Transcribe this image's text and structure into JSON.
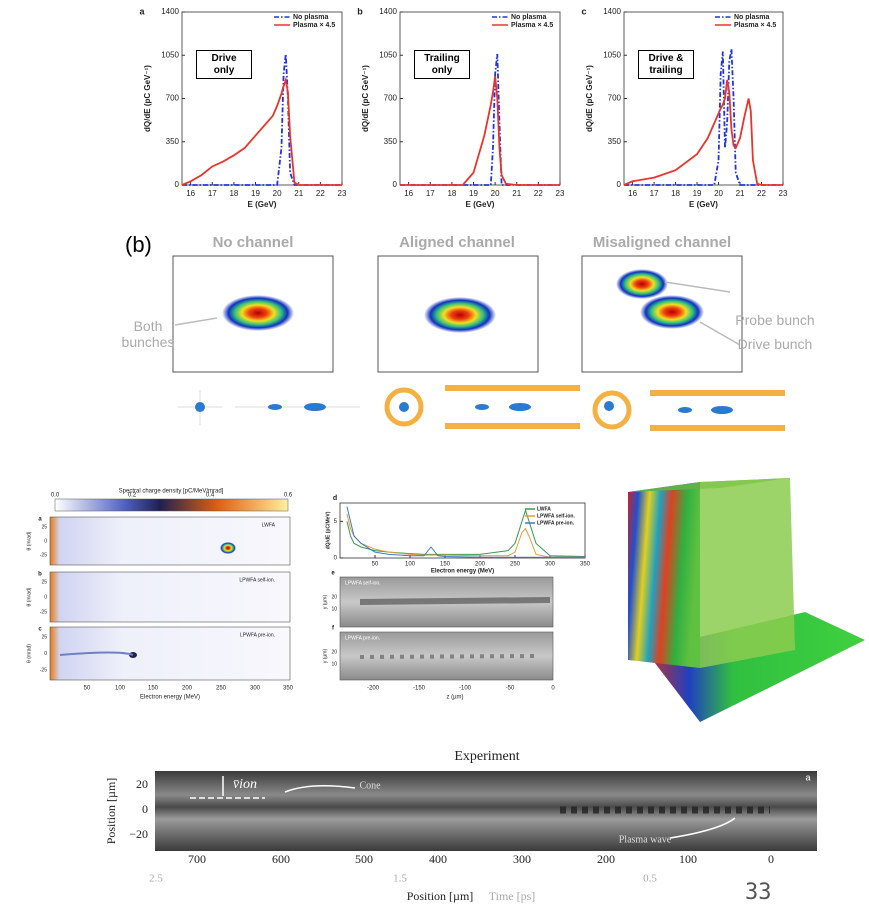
{
  "chart_data": [
    {
      "type": "line",
      "panel": "a",
      "annotation": "Drive only",
      "y_label": "dQ/dE (pC GeV⁻¹)",
      "x_label": "E (GeV)",
      "x": [
        15.6,
        16,
        16.5,
        17,
        17.5,
        18,
        18.5,
        19,
        19.5,
        19.8,
        20,
        20.2,
        20.3,
        20.4,
        20.5,
        20.6,
        20.8,
        21,
        21.5,
        22,
        23
      ],
      "series": [
        {
          "name": "No plasma",
          "color": "#2233dd",
          "line_style": "dashdot",
          "values": [
            0,
            0,
            0,
            0,
            0,
            0,
            0,
            0,
            0,
            0,
            0,
            300,
            900,
            1060,
            700,
            100,
            0,
            0,
            0,
            0,
            0
          ]
        },
        {
          "name": "Plasma × 4.5",
          "color": "#e8352b",
          "line_style": "solid",
          "values": [
            0,
            30,
            80,
            150,
            190,
            240,
            300,
            400,
            500,
            560,
            640,
            740,
            800,
            850,
            750,
            400,
            20,
            0,
            0,
            0,
            0
          ]
        }
      ],
      "xlim": [
        15.6,
        23
      ],
      "xticks": [
        16,
        17,
        18,
        19,
        20,
        21,
        22,
        23
      ],
      "ylim": [
        0,
        1400
      ],
      "yticks": [
        0,
        350,
        700,
        1050,
        1400
      ],
      "legend": "upper right"
    },
    {
      "type": "line",
      "panel": "b",
      "annotation": "Trailing only",
      "y_label": "dQ/dE (pC GeV⁻¹)",
      "x_label": "E (GeV)",
      "x": [
        15.6,
        16,
        17,
        18,
        18.5,
        19,
        19.5,
        19.8,
        19.9,
        20,
        20.1,
        20.2,
        20.3,
        20.5,
        21,
        22,
        23
      ],
      "series": [
        {
          "name": "No plasma",
          "color": "#2233dd",
          "line_style": "dashdot",
          "values": [
            0,
            0,
            0,
            0,
            0,
            0,
            0,
            0,
            300,
            900,
            1060,
            500,
            0,
            0,
            0,
            0,
            0
          ]
        },
        {
          "name": "Plasma × 4.5",
          "color": "#e8352b",
          "line_style": "solid",
          "values": [
            0,
            0,
            0,
            0,
            0,
            100,
            400,
            650,
            750,
            880,
            700,
            300,
            80,
            10,
            0,
            0,
            0
          ]
        }
      ],
      "xlim": [
        15.6,
        23
      ],
      "xticks": [
        16,
        17,
        18,
        19,
        20,
        21,
        22,
        23
      ],
      "ylim": [
        0,
        1400
      ],
      "yticks": [
        0,
        350,
        700,
        1050,
        1400
      ],
      "legend": "upper right"
    },
    {
      "type": "line",
      "panel": "c",
      "annotation": "Drive & trailing",
      "y_label": "dQ/dE (pC GeV⁻¹)",
      "x_label": "E (GeV)",
      "x": [
        15.6,
        16,
        17,
        18,
        19,
        19.5,
        19.8,
        20,
        20.1,
        20.2,
        20.3,
        20.4,
        20.5,
        20.6,
        20.7,
        20.8,
        21,
        21.2,
        21.4,
        21.5,
        21.6,
        21.8,
        22,
        23
      ],
      "series": [
        {
          "name": "No plasma",
          "color": "#2233dd",
          "line_style": "dashdot",
          "values": [
            0,
            0,
            0,
            0,
            0,
            0,
            0,
            200,
            900,
            1080,
            300,
            500,
            1000,
            1100,
            700,
            100,
            0,
            0,
            0,
            0,
            0,
            0,
            0,
            0
          ]
        },
        {
          "name": "Plasma × 4.5",
          "color": "#e8352b",
          "line_style": "solid",
          "values": [
            0,
            30,
            60,
            120,
            250,
            380,
            500,
            580,
            620,
            650,
            700,
            850,
            750,
            450,
            320,
            300,
            380,
            550,
            700,
            600,
            200,
            10,
            0,
            0
          ]
        }
      ],
      "xlim": [
        15.6,
        23
      ],
      "xticks": [
        16,
        17,
        18,
        19,
        20,
        21,
        22,
        23
      ],
      "ylim": [
        0,
        1400
      ],
      "yticks": [
        0,
        350,
        700,
        1050,
        1400
      ],
      "legend": "upper right"
    },
    {
      "type": "line",
      "panel": "d",
      "y_label": "dQ/dE (pC/MeV)",
      "x_label": "Electron energy (MeV)",
      "x": [
        10,
        15,
        20,
        30,
        50,
        70,
        100,
        120,
        130,
        140,
        150,
        200,
        240,
        250,
        260,
        265,
        270,
        280,
        300,
        350
      ],
      "series": [
        {
          "name": "LWFA",
          "color": "#3a9a4a",
          "line_style": "solid",
          "values": [
            5,
            3,
            2,
            1.5,
            1,
            0.8,
            0.6,
            0.5,
            0.5,
            0.5,
            0.5,
            0.5,
            1,
            2,
            5,
            6.5,
            5,
            2,
            0.3,
            0.2
          ]
        },
        {
          "name": "LPWFA self-ion.",
          "color": "#e89a3a",
          "line_style": "solid",
          "values": [
            6,
            4,
            3,
            2,
            1.2,
            0.8,
            0.5,
            0.4,
            0.4,
            0.4,
            0.4,
            0.3,
            0.3,
            0.8,
            3.5,
            4,
            3,
            0.5,
            0.1,
            0.1
          ]
        },
        {
          "name": "LPWFA pre-ion.",
          "color": "#3a7ac8",
          "line_style": "solid",
          "values": [
            7,
            5,
            3,
            2,
            0.8,
            0.5,
            0.3,
            0.3,
            1.5,
            0.3,
            0.2,
            0.1,
            0.1,
            0.1,
            0.1,
            0.1,
            0.1,
            0.1,
            0.1,
            0.1
          ]
        }
      ],
      "xlim": [
        0,
        350
      ],
      "xticks": [
        50,
        100,
        150,
        200,
        250,
        300,
        350
      ],
      "ylim": [
        0,
        7.5
      ],
      "yticks": [
        0,
        5
      ],
      "legend": "upper right"
    }
  ],
  "panel_b": {
    "label": "(b)",
    "columns": [
      "No channel",
      "Aligned channel",
      "Misaligned channel"
    ],
    "annotations": [
      "Both bunches",
      "Probe bunch",
      "Drive bunch"
    ]
  },
  "spectra": {
    "colorbar_title": "Spectral charge density [pC/MeV/mrad]",
    "colorbar_ticks": [
      "0.0",
      "0.2",
      "0.4",
      "0.6"
    ],
    "panels": [
      {
        "label": "a",
        "name": "LWFA"
      },
      {
        "label": "b",
        "name": "LPWFA self-ion."
      },
      {
        "label": "c",
        "name": "LPWFA pre-ion."
      }
    ],
    "y_label": "θ (mrad)",
    "y_ticks": [
      "25",
      "0",
      "-25"
    ],
    "x_ticks": [
      "50",
      "100",
      "150",
      "200",
      "250",
      "300",
      "350"
    ],
    "x_label": "Electron energy (MeV)"
  },
  "shadowgraphs": {
    "panels": [
      {
        "label": "e",
        "name": "LPWFA self-ion."
      },
      {
        "label": "f",
        "name": "LPWFA pre-ion."
      }
    ],
    "y_label": "y (µm)",
    "y_ticks": [
      "20",
      "10"
    ],
    "x_ticks": [
      "-200",
      "-150",
      "-100",
      "-50",
      "0"
    ],
    "x_label": "z (µm)"
  },
  "experiment": {
    "title": "Experiment",
    "panel_label": "a",
    "y_label": "Position [µm]",
    "y_ticks": [
      "20",
      "0",
      "−20"
    ],
    "x_ticks": [
      "700",
      "600",
      "500",
      "400",
      "300",
      "200",
      "100",
      "0"
    ],
    "time_ticks": [
      "2.5",
      "1.5",
      "0.5"
    ],
    "x_label": "Position [µm]",
    "time_label": "Time [ps]",
    "annotations": [
      "Cone",
      "Plasma wave"
    ],
    "velocity_label": "v̄ion"
  },
  "page_number": "33"
}
